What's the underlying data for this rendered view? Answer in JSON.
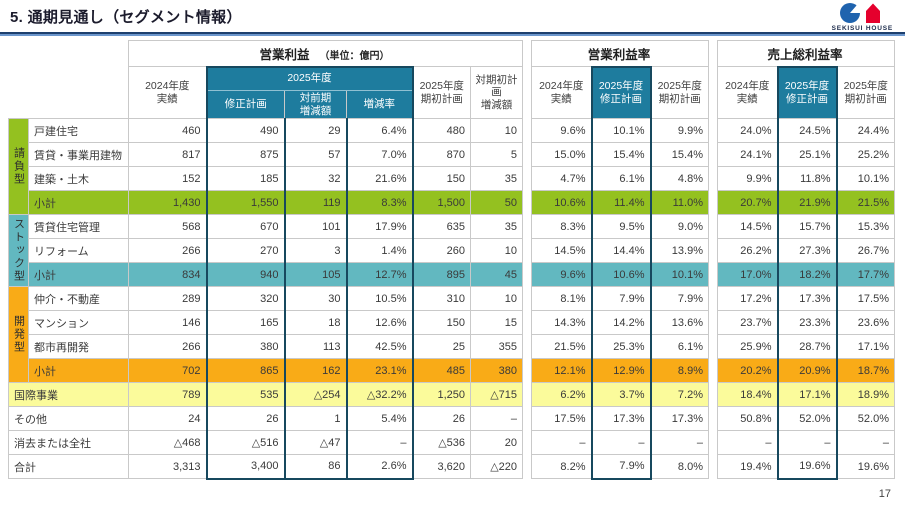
{
  "page": {
    "title": "5. 通期見通し（セグメント情報）",
    "page_number": "17",
    "logo_text": "SEKISUI HOUSE"
  },
  "colors": {
    "header_teal": "#1e7c9e",
    "dark_border": "#17485e",
    "group_green": "#94c120",
    "group_teal": "#62b8c0",
    "group_orange": "#f9ab17",
    "highlight_yellow": "#fbfb9b",
    "logo_blue": "#1f63ae",
    "logo_red": "#e5002d"
  },
  "tables": {
    "operating_profit": {
      "title": "営業利益",
      "unit": "（単位：億円）",
      "headers": {
        "fy2024": "2024年度\n実績",
        "fy2025": "2025年度",
        "revised": "修正計画",
        "yoy_change": "対前期\n増減額",
        "change_rate": "増減率",
        "initial": "2025年度\n期初計画",
        "vs_initial": "対期初計画\n増減額"
      }
    },
    "operating_margin": {
      "title": "営業利益率",
      "headers": {
        "fy2024": "2024年度\n実績",
        "revised": "2025年度\n修正計画",
        "initial": "2025年度\n期初計画"
      }
    },
    "gross_margin": {
      "title": "売上総利益率",
      "headers": {
        "fy2024": "2024年度\n実績",
        "revised": "2025年度\n修正計画",
        "initial": "2025年度\n期初計画"
      }
    }
  },
  "rows": [
    {
      "group": "請負型",
      "group_span": 4,
      "group_color": "green",
      "name": "戸建住宅",
      "fill": null,
      "full": false,
      "op": [
        "460",
        "490",
        "29",
        "6.4%",
        "480",
        "10"
      ],
      "opm": [
        "9.6%",
        "10.1%",
        "9.9%"
      ],
      "gpm": [
        "24.0%",
        "24.5%",
        "24.4%"
      ]
    },
    {
      "name": "賃貸・事業用建物",
      "fill": null,
      "full": false,
      "op": [
        "817",
        "875",
        "57",
        "7.0%",
        "870",
        "5"
      ],
      "opm": [
        "15.0%",
        "15.4%",
        "15.4%"
      ],
      "gpm": [
        "24.1%",
        "25.1%",
        "25.2%"
      ]
    },
    {
      "name": "建築・土木",
      "fill": null,
      "full": false,
      "op": [
        "152",
        "185",
        "32",
        "21.6%",
        "150",
        "35"
      ],
      "opm": [
        "4.7%",
        "6.1%",
        "4.8%"
      ],
      "gpm": [
        "9.9%",
        "11.8%",
        "10.1%"
      ]
    },
    {
      "name": "小計",
      "fill": "green",
      "full": false,
      "op": [
        "1,430",
        "1,550",
        "119",
        "8.3%",
        "1,500",
        "50"
      ],
      "opm": [
        "10.6%",
        "11.4%",
        "11.0%"
      ],
      "gpm": [
        "20.7%",
        "21.9%",
        "21.5%"
      ]
    },
    {
      "group": "ストック型",
      "group_span": 3,
      "group_color": "teal",
      "name": "賃貸住宅管理",
      "fill": null,
      "full": false,
      "op": [
        "568",
        "670",
        "101",
        "17.9%",
        "635",
        "35"
      ],
      "opm": [
        "8.3%",
        "9.5%",
        "9.0%"
      ],
      "gpm": [
        "14.5%",
        "15.7%",
        "15.3%"
      ]
    },
    {
      "name": "リフォーム",
      "fill": null,
      "full": false,
      "op": [
        "266",
        "270",
        "3",
        "1.4%",
        "260",
        "10"
      ],
      "opm": [
        "14.5%",
        "14.4%",
        "13.9%"
      ],
      "gpm": [
        "26.2%",
        "27.3%",
        "26.7%"
      ]
    },
    {
      "name": "小計",
      "fill": "teal",
      "full": false,
      "op": [
        "834",
        "940",
        "105",
        "12.7%",
        "895",
        "45"
      ],
      "opm": [
        "9.6%",
        "10.6%",
        "10.1%"
      ],
      "gpm": [
        "17.0%",
        "18.2%",
        "17.7%"
      ]
    },
    {
      "group": "開発型",
      "group_span": 4,
      "group_color": "orange",
      "name": "仲介・不動産",
      "fill": null,
      "full": false,
      "op": [
        "289",
        "320",
        "30",
        "10.5%",
        "310",
        "10"
      ],
      "opm": [
        "8.1%",
        "7.9%",
        "7.9%"
      ],
      "gpm": [
        "17.2%",
        "17.3%",
        "17.5%"
      ]
    },
    {
      "name": "マンション",
      "fill": null,
      "full": false,
      "op": [
        "146",
        "165",
        "18",
        "12.6%",
        "150",
        "15"
      ],
      "opm": [
        "14.3%",
        "14.2%",
        "13.6%"
      ],
      "gpm": [
        "23.7%",
        "23.3%",
        "23.6%"
      ]
    },
    {
      "name": "都市再開発",
      "fill": null,
      "full": false,
      "op": [
        "266",
        "380",
        "113",
        "42.5%",
        "25",
        "355"
      ],
      "opm": [
        "21.5%",
        "25.3%",
        "6.1%"
      ],
      "gpm": [
        "25.9%",
        "28.7%",
        "17.1%"
      ]
    },
    {
      "name": "小計",
      "fill": "orange",
      "full": false,
      "op": [
        "702",
        "865",
        "162",
        "23.1%",
        "485",
        "380"
      ],
      "opm": [
        "12.1%",
        "12.9%",
        "8.9%"
      ],
      "gpm": [
        "20.2%",
        "20.9%",
        "18.7%"
      ]
    },
    {
      "name": "国際事業",
      "fill": "yellow",
      "full": true,
      "op": [
        "789",
        "535",
        "△254",
        "△32.2%",
        "1,250",
        "△715"
      ],
      "opm": [
        "6.2%",
        "3.7%",
        "7.2%"
      ],
      "gpm": [
        "18.4%",
        "17.1%",
        "18.9%"
      ]
    },
    {
      "name": "その他",
      "fill": null,
      "full": true,
      "op": [
        "24",
        "26",
        "1",
        "5.4%",
        "26",
        "–"
      ],
      "opm": [
        "17.5%",
        "17.3%",
        "17.3%"
      ],
      "gpm": [
        "50.8%",
        "52.0%",
        "52.0%"
      ]
    },
    {
      "name": "消去または全社",
      "fill": null,
      "full": true,
      "op": [
        "△468",
        "△516",
        "△47",
        "–",
        "△536",
        "20"
      ],
      "opm": [
        "–",
        "–",
        "–"
      ],
      "gpm": [
        "–",
        "–",
        "–"
      ]
    },
    {
      "name": "合計",
      "fill": null,
      "full": true,
      "op": [
        "3,313",
        "3,400",
        "86",
        "2.6%",
        "3,620",
        "△220"
      ],
      "opm": [
        "8.2%",
        "7.9%",
        "8.0%"
      ],
      "gpm": [
        "19.4%",
        "19.6%",
        "19.6%"
      ]
    }
  ]
}
